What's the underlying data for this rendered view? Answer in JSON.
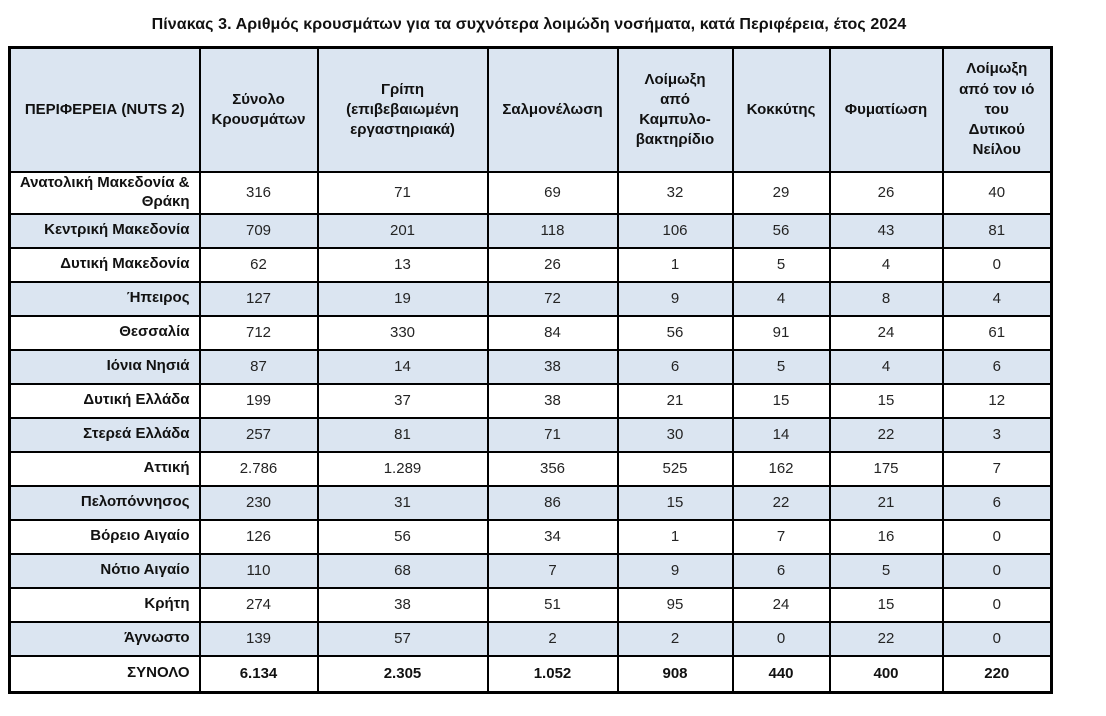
{
  "page": {
    "title": "Πίνακας 3. Αριθμός κρουσμάτων για τα συχνότερα λοιμώδη νοσήματα, κατά Περιφέρεια, έτος 2024"
  },
  "colors": {
    "stripe_and_header_bg": "#dbe5f1",
    "grid_border": "#000000",
    "text": "#111111"
  },
  "table": {
    "columns": [
      {
        "label": "ΠΕΡΙΦΕΡΕΙΑ (NUTS 2)"
      },
      {
        "label": "Σύνολο\nΚρουσμάτων"
      },
      {
        "label": "Γρίπη\n(επιβεβαιωμένη\nεργαστηριακά)"
      },
      {
        "label": "Σαλμονέλωση"
      },
      {
        "label": "Λοίμωξη\nαπό\nΚαμπυλο-\nβακτηρίδιο"
      },
      {
        "label": "Κοκκύτης"
      },
      {
        "label": "Φυματίωση"
      },
      {
        "label": "Λοίμωξη\nαπό τον ιό\nτου\nΔυτικού\nΝείλου"
      }
    ],
    "rows": [
      {
        "region": "Ανατολική Μακεδονία & Θράκη",
        "values": [
          "316",
          "71",
          "69",
          "32",
          "29",
          "26",
          "40"
        ]
      },
      {
        "region": "Κεντρική Μακεδονία",
        "values": [
          "709",
          "201",
          "118",
          "106",
          "56",
          "43",
          "81"
        ]
      },
      {
        "region": "Δυτική Μακεδονία",
        "values": [
          "62",
          "13",
          "26",
          "1",
          "5",
          "4",
          "0"
        ]
      },
      {
        "region": "Ήπειρος",
        "values": [
          "127",
          "19",
          "72",
          "9",
          "4",
          "8",
          "4"
        ]
      },
      {
        "region": "Θεσσαλία",
        "values": [
          "712",
          "330",
          "84",
          "56",
          "91",
          "24",
          "61"
        ]
      },
      {
        "region": "Ιόνια Νησιά",
        "values": [
          "87",
          "14",
          "38",
          "6",
          "5",
          "4",
          "6"
        ]
      },
      {
        "region": "Δυτική Ελλάδα",
        "values": [
          "199",
          "37",
          "38",
          "21",
          "15",
          "15",
          "12"
        ]
      },
      {
        "region": "Στερεά Ελλάδα",
        "values": [
          "257",
          "81",
          "71",
          "30",
          "14",
          "22",
          "3"
        ]
      },
      {
        "region": "Αττική",
        "values": [
          "2.786",
          "1.289",
          "356",
          "525",
          "162",
          "175",
          "7"
        ]
      },
      {
        "region": "Πελοπόννησος",
        "values": [
          "230",
          "31",
          "86",
          "15",
          "22",
          "21",
          "6"
        ]
      },
      {
        "region": "Βόρειο Αιγαίο",
        "values": [
          "126",
          "56",
          "34",
          "1",
          "7",
          "16",
          "0"
        ]
      },
      {
        "region": "Νότιο Αιγαίο",
        "values": [
          "110",
          "68",
          "7",
          "9",
          "6",
          "5",
          "0"
        ]
      },
      {
        "region": "Κρήτη",
        "values": [
          "274",
          "38",
          "51",
          "95",
          "24",
          "15",
          "0"
        ]
      },
      {
        "region": "Άγνωστο",
        "values": [
          "139",
          "57",
          "2",
          "2",
          "0",
          "22",
          "0"
        ]
      }
    ],
    "total_row": {
      "label": "ΣΥΝΟΛΟ",
      "values": [
        "6.134",
        "2.305",
        "1.052",
        "908",
        "440",
        "400",
        "220"
      ]
    }
  }
}
